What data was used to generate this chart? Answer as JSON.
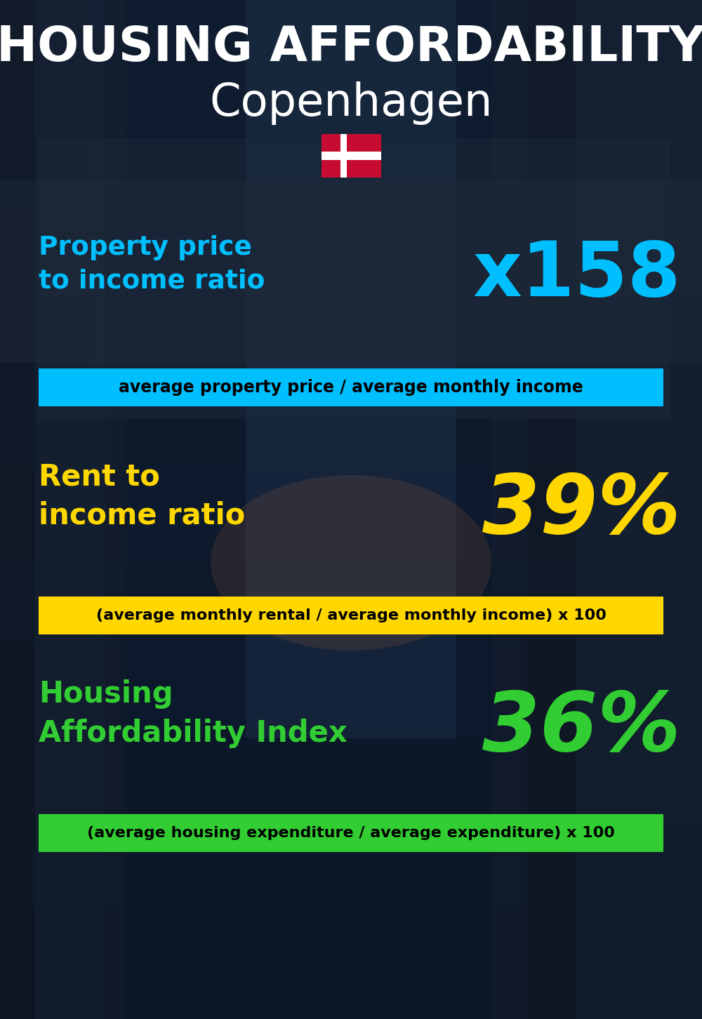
{
  "title_line1": "HOUSING AFFORDABILITY",
  "title_line2": "Copenhagen",
  "section1_label": "Property price\nto income ratio",
  "section1_value": "x158",
  "section1_sublabel": "average property price / average monthly income",
  "section1_label_color": "#00BFFF",
  "section1_value_color": "#00BFFF",
  "section1_bg_color": "#00BFFF",
  "section1_sub_text_color": "#000000",
  "section2_label": "Rent to\nincome ratio",
  "section2_value": "39%",
  "section2_sublabel": "(average monthly rental / average monthly income) x 100",
  "section2_label_color": "#FFD700",
  "section2_value_color": "#FFD700",
  "section2_bg_color": "#FFD700",
  "section2_sub_text_color": "#000000",
  "section3_label": "Housing\nAffordability Index",
  "section3_value": "36%",
  "section3_sublabel": "(average housing expenditure / average expenditure) x 100",
  "section3_label_color": "#32CD32",
  "section3_value_color": "#32CD32",
  "section3_bg_color": "#32CD32",
  "section3_sub_text_color": "#000000",
  "bg_color": "#0a1628",
  "title_color": "#FFFFFF",
  "denmark_red": "#C60C30",
  "denmark_white": "#FFFFFF"
}
